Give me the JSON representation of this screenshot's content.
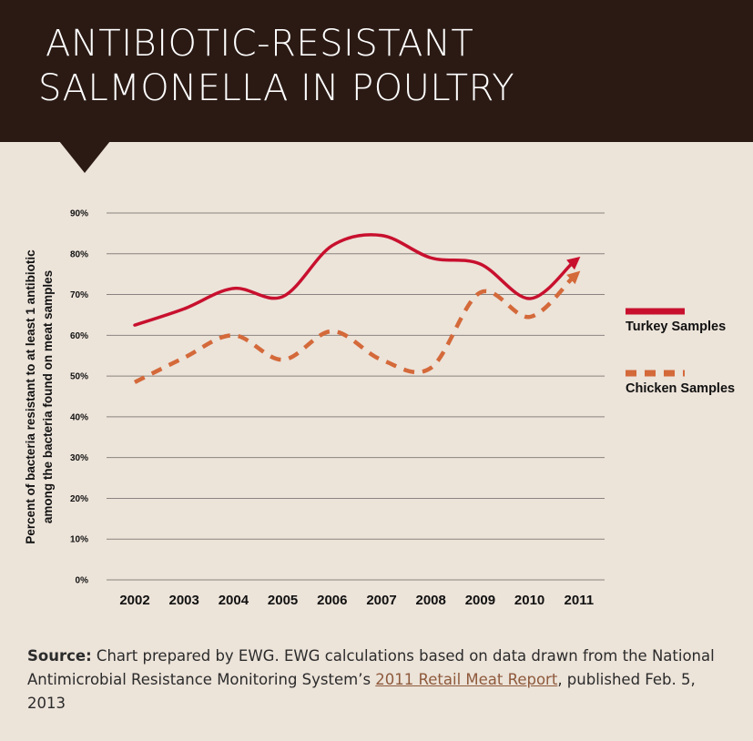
{
  "header": {
    "title_line1": "ANTIBIOTIC-RESISTANT",
    "title_line2": "SALMONELLA IN POULTRY"
  },
  "chart_data": {
    "type": "line",
    "categories": [
      "2002",
      "2003",
      "2004",
      "2005",
      "2006",
      "2007",
      "2008",
      "2009",
      "2010",
      "2011"
    ],
    "ylabel_line1": "Percent of bacteria resistant to at least 1 antibiotic",
    "ylabel_line2": "among the bacteria found on meat samples",
    "xlabel": "",
    "yticks": [
      "0%",
      "10%",
      "20%",
      "30%",
      "40%",
      "50%",
      "60%",
      "70%",
      "80%",
      "90%"
    ],
    "ylim": [
      0,
      90
    ],
    "grid": true,
    "legend_position": "right",
    "series": [
      {
        "name": "Turkey Samples",
        "color": "#c8102e",
        "style": "solid",
        "values": [
          62.5,
          66.5,
          71.5,
          69.5,
          82,
          84.5,
          79,
          77.5,
          69,
          79
        ]
      },
      {
        "name": "Chicken Samples",
        "color": "#d4693a",
        "style": "dashed",
        "values": [
          48.5,
          54.5,
          60,
          54,
          61,
          54,
          52,
          70.5,
          64.5,
          75.5
        ]
      }
    ]
  },
  "source": {
    "label": "Source:",
    "text_before": " Chart prepared by EWG. EWG calculations based on data drawn from the National Antimicrobial Resistance Monitoring System’s ",
    "link_text": "2011 Retail Meat Report",
    "text_after": ", published Feb. 5, 2013"
  }
}
